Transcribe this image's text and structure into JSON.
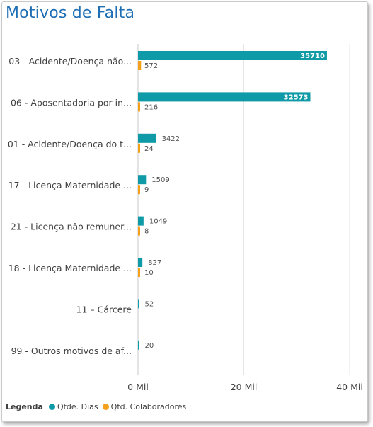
{
  "title": "Motivos de Falta",
  "legend_title": "Legenda",
  "chart_data": {
    "type": "bar",
    "orientation": "horizontal",
    "categories": [
      "03 - Acidente/Doença não...",
      "06 - Aposentadoria por in...",
      "01 - Acidente/Doença do t...",
      "17 - Licença Maternidade ...",
      "21 - Licença não remuner...",
      "18 - Licença Maternidade ...",
      "11 – Cárcere",
      "99 - Outros motivos de af..."
    ],
    "series": [
      {
        "name": "Qtde. Dias",
        "color": "#0e9aa7",
        "values": [
          35710,
          32573,
          3422,
          1509,
          1049,
          827,
          52,
          20
        ]
      },
      {
        "name": "Qtd. Colaboradores",
        "color": "#f5a01a",
        "values": [
          572,
          216,
          24,
          9,
          8,
          10,
          0,
          0
        ]
      }
    ],
    "series2_labels": [
      "572",
      "216",
      "24",
      "9",
      "8",
      "10",
      "",
      ""
    ],
    "xlim": [
      0,
      40000
    ],
    "xticks": [
      0,
      20000,
      40000
    ],
    "xtick_labels": [
      "0 Mil",
      "20 Mil",
      "40 Mil"
    ],
    "grid": true,
    "legend_position": "bottom-left"
  }
}
